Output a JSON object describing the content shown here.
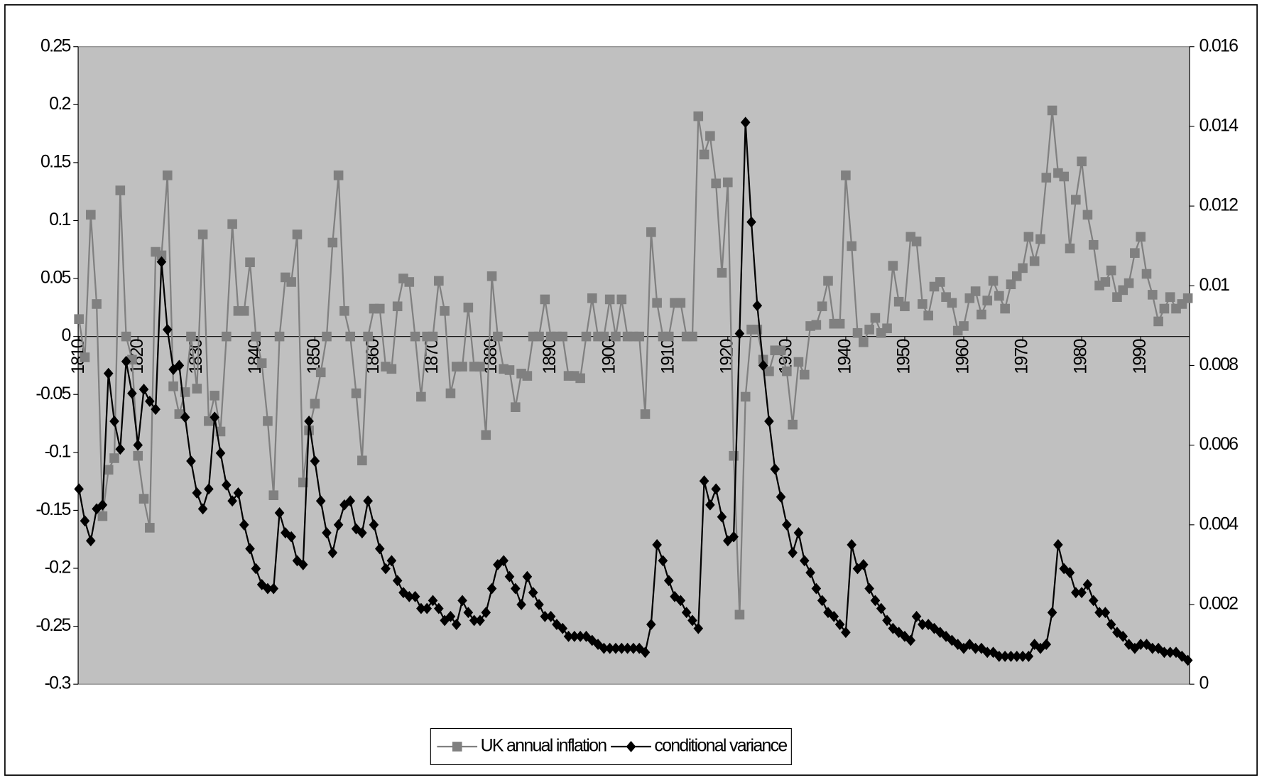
{
  "chart_data": {
    "type": "line",
    "x": [
      1810,
      1811,
      1812,
      1813,
      1814,
      1815,
      1816,
      1817,
      1818,
      1819,
      1820,
      1821,
      1822,
      1823,
      1824,
      1825,
      1826,
      1827,
      1828,
      1829,
      1830,
      1831,
      1832,
      1833,
      1834,
      1835,
      1836,
      1837,
      1838,
      1839,
      1840,
      1841,
      1842,
      1843,
      1844,
      1845,
      1846,
      1847,
      1848,
      1849,
      1850,
      1851,
      1852,
      1853,
      1854,
      1855,
      1856,
      1857,
      1858,
      1859,
      1860,
      1861,
      1862,
      1863,
      1864,
      1865,
      1866,
      1867,
      1868,
      1869,
      1870,
      1871,
      1872,
      1873,
      1874,
      1875,
      1876,
      1877,
      1878,
      1879,
      1880,
      1881,
      1882,
      1883,
      1884,
      1885,
      1886,
      1887,
      1888,
      1889,
      1890,
      1891,
      1892,
      1893,
      1894,
      1895,
      1896,
      1897,
      1898,
      1899,
      1900,
      1901,
      1902,
      1903,
      1904,
      1905,
      1906,
      1907,
      1908,
      1909,
      1910,
      1911,
      1912,
      1913,
      1914,
      1915,
      1916,
      1917,
      1918,
      1919,
      1920,
      1921,
      1922,
      1923,
      1924,
      1925,
      1926,
      1927,
      1928,
      1929,
      1930,
      1931,
      1932,
      1933,
      1934,
      1935,
      1936,
      1937,
      1938,
      1939,
      1940,
      1941,
      1942,
      1943,
      1944,
      1945,
      1946,
      1947,
      1948,
      1949,
      1950,
      1951,
      1952,
      1953,
      1954,
      1955,
      1956,
      1957,
      1958,
      1959,
      1960,
      1961,
      1962,
      1963,
      1964,
      1965,
      1966,
      1967,
      1968,
      1969,
      1970,
      1971,
      1972,
      1973,
      1974,
      1975,
      1976,
      1977,
      1978,
      1979,
      1980,
      1981,
      1982,
      1983,
      1984,
      1985,
      1986,
      1987,
      1988,
      1989,
      1990,
      1991,
      1992,
      1993,
      1994,
      1995,
      1996,
      1997,
      1998
    ],
    "xlim": [
      1810,
      1998
    ],
    "xticks": [
      1810,
      1820,
      1830,
      1840,
      1850,
      1860,
      1870,
      1880,
      1890,
      1900,
      1910,
      1920,
      1930,
      1940,
      1950,
      1960,
      1970,
      1980,
      1990
    ],
    "ylim": [
      -0.3,
      0.25
    ],
    "yticks": [
      0.25,
      0.2,
      0.15,
      0.1,
      0.05,
      0,
      -0.05,
      -0.1,
      -0.15,
      -0.2,
      -0.25,
      -0.3
    ],
    "y2lim": [
      0,
      0.016
    ],
    "y2ticks": [
      0.016,
      0.014,
      0.012,
      0.01,
      0.008,
      0.006,
      0.004,
      0.002,
      0
    ],
    "background": "#c0c0c0",
    "legend": "bottom",
    "series": [
      {
        "name": "UK annual inflation",
        "color": "#808080",
        "marker": "square",
        "axis": "y",
        "values": [
          0.015,
          -0.018,
          0.105,
          0.028,
          -0.155,
          -0.115,
          -0.105,
          0.126,
          0,
          -0.02,
          -0.103,
          -0.14,
          -0.165,
          0.073,
          0.07,
          0.139,
          -0.043,
          -0.067,
          -0.048,
          0,
          -0.045,
          0.088,
          -0.073,
          -0.051,
          -0.082,
          0,
          0.097,
          0.022,
          0.022,
          0.064,
          0,
          -0.023,
          -0.073,
          -0.137,
          0,
          0.051,
          0.047,
          0.088,
          -0.126,
          -0.081,
          -0.058,
          -0.031,
          0,
          0.081,
          0.139,
          0.022,
          0,
          -0.049,
          -0.107,
          0,
          0.024,
          0.024,
          -0.026,
          -0.028,
          0.026,
          0.05,
          0.047,
          0,
          -0.052,
          0,
          0,
          0.048,
          0.022,
          -0.049,
          -0.026,
          -0.026,
          0.025,
          -0.026,
          -0.026,
          -0.085,
          0.052,
          0,
          -0.028,
          -0.029,
          -0.061,
          -0.032,
          -0.034,
          0,
          0,
          0.032,
          0,
          0,
          0,
          -0.034,
          -0.034,
          -0.036,
          0,
          0.033,
          0,
          0,
          0.032,
          0,
          0.032,
          0,
          0,
          0,
          -0.067,
          0.09,
          0.029,
          0,
          0,
          0.029,
          0.029,
          0,
          0,
          0.19,
          0.157,
          0.173,
          0.132,
          0.055,
          0.133,
          -0.103,
          -0.24,
          -0.052,
          0.006,
          0.006,
          -0.02,
          -0.03,
          -0.012,
          -0.012,
          -0.03,
          -0.076,
          -0.022,
          -0.033,
          0.009,
          0.01,
          0.026,
          0.048,
          0.011,
          0.011,
          0.139,
          0.078,
          0.003,
          -0.005,
          0.006,
          0.016,
          0.003,
          0.007,
          0.061,
          0.03,
          0.026,
          0.086,
          0.082,
          0.028,
          0.018,
          0.043,
          0.047,
          0.034,
          0.029,
          0.005,
          0.009,
          0.033,
          0.039,
          0.019,
          0.031,
          0.048,
          0.035,
          0.024,
          0.045,
          0.052,
          0.059,
          0.086,
          0.065,
          0.084,
          0.137,
          0.195,
          0.141,
          0.138,
          0.076,
          0.118,
          0.151,
          0.105,
          0.079,
          0.044,
          0.047,
          0.057,
          0.034,
          0.04,
          0.046,
          0.072,
          0.086,
          0.054,
          0.036,
          0.013,
          0.024,
          0.034,
          0.024,
          0.028,
          0.033
        ]
      },
      {
        "name": "conditional variance",
        "color": "#000000",
        "marker": "diamond",
        "axis": "y2",
        "values": [
          0.0049,
          0.0041,
          0.0036,
          0.0044,
          0.0045,
          0.0078,
          0.0066,
          0.0059,
          0.0081,
          0.0073,
          0.006,
          0.0074,
          0.0071,
          0.0069,
          0.0106,
          0.0089,
          0.0079,
          0.008,
          0.0067,
          0.0056,
          0.0048,
          0.0044,
          0.0049,
          0.0067,
          0.0058,
          0.005,
          0.0046,
          0.0048,
          0.004,
          0.0034,
          0.0029,
          0.0025,
          0.0024,
          0.0024,
          0.0043,
          0.0038,
          0.0037,
          0.0031,
          0.003,
          0.0066,
          0.0056,
          0.0046,
          0.0038,
          0.0033,
          0.004,
          0.0045,
          0.0046,
          0.0039,
          0.0038,
          0.0046,
          0.004,
          0.0034,
          0.0029,
          0.0031,
          0.0026,
          0.0023,
          0.0022,
          0.0022,
          0.0019,
          0.0019,
          0.0021,
          0.0019,
          0.0016,
          0.0017,
          0.0015,
          0.0021,
          0.0018,
          0.0016,
          0.0016,
          0.0018,
          0.0024,
          0.003,
          0.0031,
          0.0027,
          0.0024,
          0.002,
          0.0027,
          0.0023,
          0.002,
          0.0017,
          0.0017,
          0.0015,
          0.0014,
          0.0012,
          0.0012,
          0.0012,
          0.0012,
          0.0011,
          0.001,
          0.0009,
          0.0009,
          0.0009,
          0.0009,
          0.0009,
          0.0009,
          0.0009,
          0.0008,
          0.0015,
          0.0035,
          0.0031,
          0.0026,
          0.0022,
          0.0021,
          0.0018,
          0.0016,
          0.0014,
          0.0051,
          0.0045,
          0.0049,
          0.0042,
          0.0036,
          0.0037,
          0.0088,
          0.0141,
          0.0116,
          0.0095,
          0.008,
          0.0066,
          0.0054,
          0.0047,
          0.004,
          0.0033,
          0.0038,
          0.0031,
          0.0028,
          0.0024,
          0.0021,
          0.0018,
          0.0017,
          0.0015,
          0.0013,
          0.0035,
          0.0029,
          0.003,
          0.0024,
          0.0021,
          0.0019,
          0.0016,
          0.0014,
          0.0013,
          0.0012,
          0.0011,
          0.0017,
          0.0015,
          0.0015,
          0.0014,
          0.0013,
          0.0012,
          0.0011,
          0.001,
          0.0009,
          0.001,
          0.0009,
          0.0009,
          0.0008,
          0.0008,
          0.0007,
          0.0007,
          0.0007,
          0.0007,
          0.0007,
          0.0007,
          0.001,
          0.0009,
          0.001,
          0.0018,
          0.0035,
          0.0029,
          0.0028,
          0.0023,
          0.0023,
          0.0025,
          0.0021,
          0.0018,
          0.0018,
          0.0015,
          0.0013,
          0.0012,
          0.001,
          0.0009,
          0.001,
          0.001,
          0.0009,
          0.0009,
          0.0008,
          0.0008,
          0.0008,
          0.0007,
          0.0006
        ]
      }
    ]
  }
}
